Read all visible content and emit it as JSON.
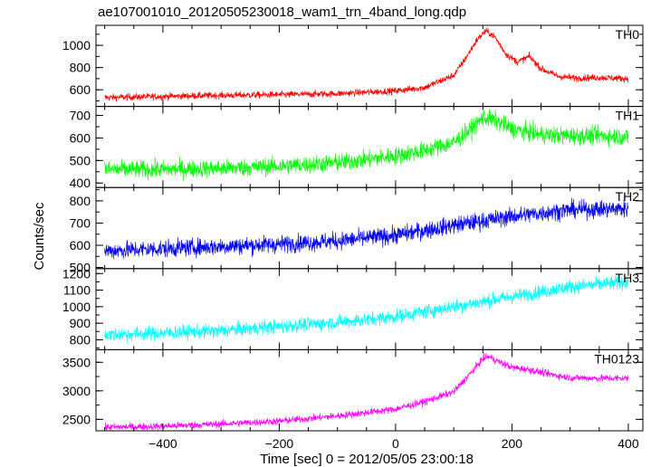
{
  "chart_data": {
    "type": "line",
    "title": "ae107001010_20120505230018_wam1_trn_4band_long.qdp",
    "xlabel": "Time [sec] 0 = 2012/05/05 23:00:18",
    "ylabel": "Counts/sec",
    "xlim": [
      -515,
      425
    ],
    "xticks": [
      -400,
      -200,
      0,
      200,
      400
    ],
    "grid": false,
    "panels": [
      {
        "name": "TH0",
        "color": "#ff0000",
        "ylim": [
          450,
          1180
        ],
        "yticks": [
          600,
          800,
          1000
        ],
        "noise": 22,
        "x": [
          -500,
          -400,
          -300,
          -200,
          -100,
          0,
          50,
          100,
          120,
          140,
          155,
          170,
          190,
          210,
          230,
          250,
          280,
          310,
          350,
          400
        ],
        "y": [
          530,
          540,
          550,
          555,
          565,
          590,
          620,
          730,
          880,
          1050,
          1130,
          1080,
          920,
          850,
          900,
          790,
          720,
          705,
          710,
          700
        ]
      },
      {
        "name": "TH1",
        "color": "#00ff00",
        "ylim": [
          380,
          740
        ],
        "yticks": [
          400,
          500,
          600,
          700
        ],
        "noise": 28,
        "x": [
          -500,
          -400,
          -300,
          -200,
          -100,
          0,
          50,
          100,
          130,
          150,
          170,
          200,
          250,
          300,
          350,
          400
        ],
        "y": [
          460,
          460,
          465,
          475,
          490,
          520,
          545,
          580,
          640,
          690,
          680,
          640,
          615,
          610,
          610,
          605
        ]
      },
      {
        "name": "TH2",
        "color": "#0000ff",
        "ylim": [
          495,
          860
        ],
        "yticks": [
          500,
          600,
          700,
          800
        ],
        "noise": 28,
        "x": [
          -500,
          -400,
          -300,
          -200,
          -100,
          0,
          100,
          150,
          200,
          300,
          400
        ],
        "y": [
          575,
          585,
          595,
          605,
          620,
          645,
          690,
          710,
          730,
          760,
          765
        ]
      },
      {
        "name": "TH3",
        "color": "#00ffff",
        "ylim": [
          740,
          1230
        ],
        "yticks": [
          800,
          900,
          1000,
          1100,
          1200
        ],
        "noise": 30,
        "x": [
          -500,
          -400,
          -300,
          -200,
          -100,
          0,
          100,
          200,
          300,
          400
        ],
        "y": [
          830,
          840,
          855,
          880,
          905,
          940,
          1000,
          1060,
          1120,
          1150
        ]
      },
      {
        "name": "TH0123",
        "color": "#ff00ff",
        "ylim": [
          2300,
          3720
        ],
        "yticks": [
          2500,
          3000,
          3500
        ],
        "noise": 45,
        "x": [
          -500,
          -400,
          -300,
          -200,
          -100,
          0,
          50,
          100,
          130,
          150,
          160,
          175,
          200,
          230,
          260,
          300,
          350,
          400
        ],
        "y": [
          2360,
          2380,
          2420,
          2470,
          2560,
          2680,
          2810,
          2980,
          3320,
          3560,
          3600,
          3520,
          3410,
          3370,
          3300,
          3230,
          3220,
          3220
        ]
      }
    ]
  }
}
